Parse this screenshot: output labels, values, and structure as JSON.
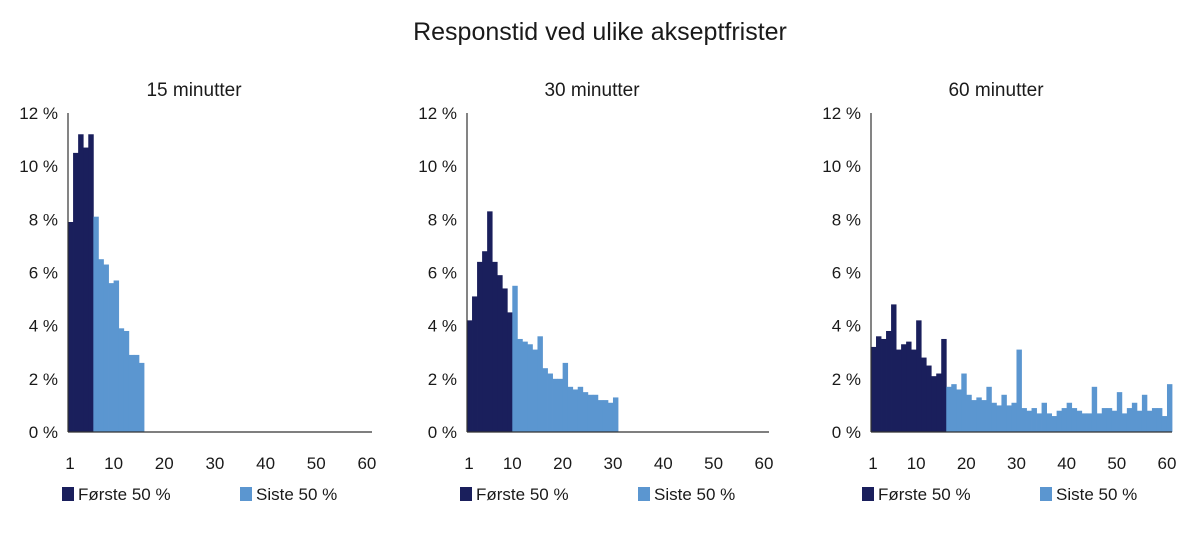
{
  "title": "Responstid ved ulike akseptfrister",
  "colors": {
    "first": "#1a1f5c",
    "last": "#5b96d0",
    "axis": "#333333"
  },
  "chart_data": [
    {
      "type": "bar",
      "title": "15 minutter",
      "xlabel": "",
      "ylabel": "",
      "x_ticks": [
        1,
        10,
        20,
        30,
        40,
        50,
        60
      ],
      "xlim": [
        1,
        60
      ],
      "y_ticks": [
        "0 %",
        "2 %",
        "4 %",
        "6 %",
        "8 %",
        "10 %",
        "12 %"
      ],
      "ylim": [
        0,
        12
      ],
      "legend": {
        "position": "bottom-left",
        "entries": [
          "Første 50 %",
          "Siste 50 %"
        ]
      },
      "series": [
        {
          "name": "Første 50 %",
          "x": [
            1,
            2,
            3,
            4,
            5
          ],
          "values": [
            7.9,
            10.5,
            11.2,
            10.7,
            11.2
          ]
        },
        {
          "name": "Siste 50 %",
          "x": [
            6,
            7,
            8,
            9,
            10,
            11,
            12,
            13,
            14,
            15
          ],
          "values": [
            8.1,
            6.5,
            6.3,
            5.6,
            5.7,
            3.9,
            3.8,
            2.9,
            2.9,
            2.6
          ]
        }
      ]
    },
    {
      "type": "bar",
      "title": "30 minutter",
      "xlabel": "",
      "ylabel": "",
      "x_ticks": [
        1,
        10,
        20,
        30,
        40,
        50,
        60
      ],
      "xlim": [
        1,
        60
      ],
      "y_ticks": [
        "0 %",
        "2 %",
        "4 %",
        "6 %",
        "8 %",
        "10 %",
        "12 %"
      ],
      "ylim": [
        0,
        12
      ],
      "legend": {
        "position": "bottom-left",
        "entries": [
          "Første 50 %",
          "Siste 50 %"
        ]
      },
      "series": [
        {
          "name": "Første 50 %",
          "x": [
            1,
            2,
            3,
            4,
            5,
            6,
            7,
            8,
            9
          ],
          "values": [
            4.2,
            5.1,
            6.4,
            6.8,
            8.3,
            6.4,
            5.9,
            5.4,
            4.5
          ]
        },
        {
          "name": "Siste 50 %",
          "x": [
            10,
            11,
            12,
            13,
            14,
            15,
            16,
            17,
            18,
            19,
            20,
            21,
            22,
            23,
            24,
            25,
            26,
            27,
            28,
            29,
            30
          ],
          "values": [
            5.5,
            3.5,
            3.4,
            3.3,
            3.1,
            3.6,
            2.4,
            2.2,
            2.0,
            2.0,
            2.6,
            1.7,
            1.6,
            1.7,
            1.5,
            1.4,
            1.4,
            1.2,
            1.2,
            1.1,
            1.3
          ]
        }
      ]
    },
    {
      "type": "bar",
      "title": "60 minutter",
      "xlabel": "",
      "ylabel": "",
      "x_ticks": [
        1,
        10,
        20,
        30,
        40,
        50,
        60
      ],
      "xlim": [
        1,
        60
      ],
      "y_ticks": [
        "0 %",
        "2 %",
        "4 %",
        "6 %",
        "8 %",
        "10 %",
        "12 %"
      ],
      "ylim": [
        0,
        12
      ],
      "legend": {
        "position": "bottom-left",
        "entries": [
          "Første 50 %",
          "Siste 50 %"
        ]
      },
      "series": [
        {
          "name": "Første 50 %",
          "x": [
            1,
            2,
            3,
            4,
            5,
            6,
            7,
            8,
            9,
            10,
            11,
            12,
            13,
            14,
            15
          ],
          "values": [
            3.2,
            3.6,
            3.5,
            3.8,
            4.8,
            3.1,
            3.3,
            3.4,
            3.1,
            4.2,
            2.8,
            2.5,
            2.1,
            2.2,
            3.5
          ]
        },
        {
          "name": "Siste 50 %",
          "x": [
            16,
            17,
            18,
            19,
            20,
            21,
            22,
            23,
            24,
            25,
            26,
            27,
            28,
            29,
            30,
            31,
            32,
            33,
            34,
            35,
            36,
            37,
            38,
            39,
            40,
            41,
            42,
            43,
            44,
            45,
            46,
            47,
            48,
            49,
            50,
            51,
            52,
            53,
            54,
            55,
            56,
            57,
            58,
            59,
            60
          ],
          "values": [
            1.7,
            1.8,
            1.6,
            2.2,
            1.4,
            1.2,
            1.3,
            1.2,
            1.7,
            1.1,
            1.0,
            1.4,
            1.0,
            1.1,
            3.1,
            0.9,
            0.8,
            0.9,
            0.7,
            1.1,
            0.7,
            0.6,
            0.8,
            0.9,
            1.1,
            0.9,
            0.8,
            0.7,
            0.7,
            1.7,
            0.7,
            0.9,
            0.9,
            0.8,
            1.5,
            0.7,
            0.9,
            1.1,
            0.8,
            1.4,
            0.8,
            0.9,
            0.9,
            0.6,
            1.8
          ]
        }
      ]
    }
  ]
}
